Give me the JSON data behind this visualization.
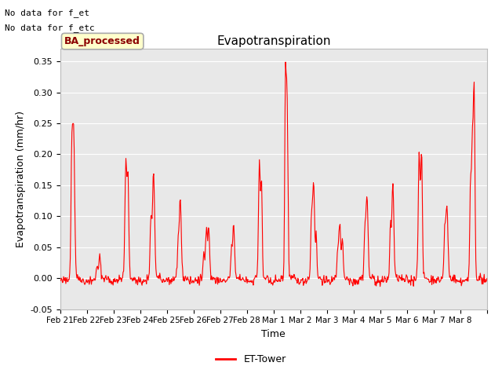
{
  "title": "Evapotranspiration",
  "xlabel": "Time",
  "ylabel": "Evapotranspiration (mm/hr)",
  "ylim": [
    -0.05,
    0.37
  ],
  "line_color": "red",
  "line_width": 0.8,
  "legend_label": "ET-Tower",
  "annotation_box": "BA_processed",
  "nodata_text1": "No data for f_et",
  "nodata_text2": "No data for f_etc",
  "bg_color": "#e8e8e8",
  "xtick_labels": [
    "Feb 21",
    "Feb 22",
    "Feb 23",
    "Feb 24",
    "Feb 25",
    "Feb 26",
    "Feb 27",
    "Feb 28",
    "Mar 1",
    "Mar 2",
    "Mar 3",
    "Mar 4",
    "Mar 5",
    "Mar 6",
    "Mar 7",
    "Mar 8"
  ],
  "ytick_vals": [
    -0.05,
    0.0,
    0.05,
    0.1,
    0.15,
    0.2,
    0.25,
    0.3,
    0.35
  ],
  "n_days": 16,
  "pts_per_day": 48
}
